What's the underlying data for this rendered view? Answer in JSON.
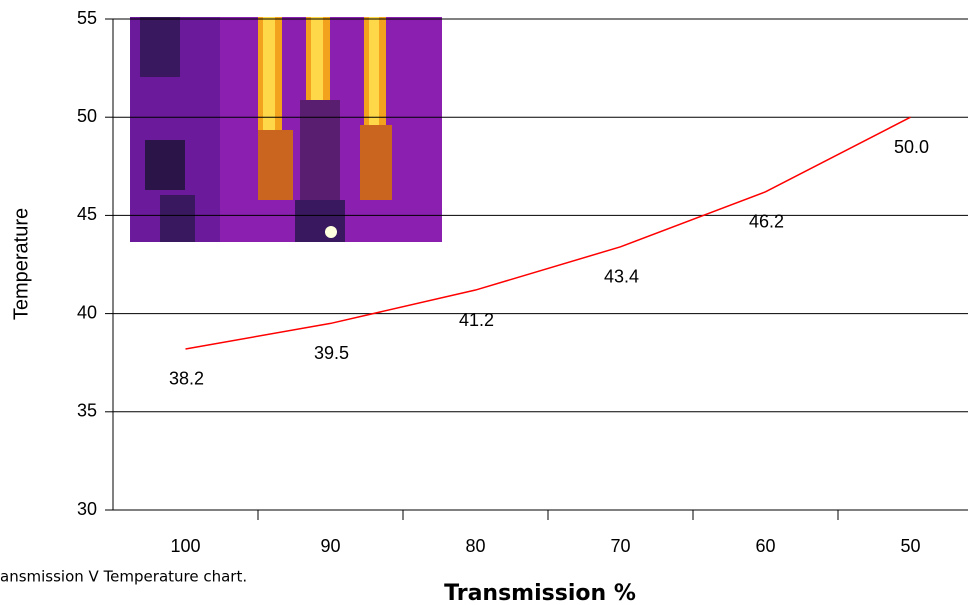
{
  "chart_data": {
    "type": "line",
    "caption": "ansmission V Temperature chart.",
    "x_label": "Transmission %",
    "y_label": "Temperature",
    "categories": [
      "100",
      "90",
      "80",
      "70",
      "60",
      "50"
    ],
    "values": [
      38.2,
      39.5,
      41.2,
      43.4,
      46.2,
      50.0
    ],
    "value_labels": [
      "38.2",
      "39.5",
      "41.2",
      "43.4",
      "46.2",
      "50.0"
    ],
    "color": "#ff0000",
    "ylim": [
      30,
      55
    ],
    "yticks": [
      30,
      35,
      40,
      45,
      50,
      55
    ],
    "grid": true
  }
}
